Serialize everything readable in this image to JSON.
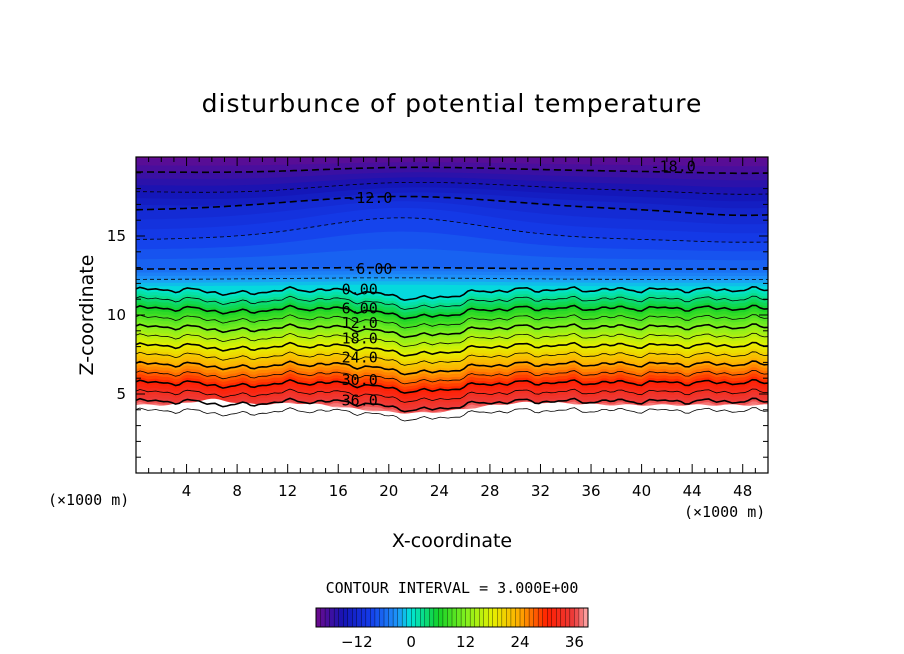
{
  "chart_data": {
    "type": "heatmap",
    "title": "disturbunce of potential temperature",
    "xlabel": "X-coordinate",
    "ylabel": "Z-coordinate",
    "x_unit": "(×1000 m)",
    "y_unit": "(×1000 m)",
    "xlim": [
      0,
      50
    ],
    "ylim": [
      0,
      20
    ],
    "x_ticks": [
      4,
      8,
      12,
      16,
      20,
      24,
      28,
      32,
      36,
      40,
      44,
      48
    ],
    "x_tick_labels": [
      "4",
      "8",
      "12",
      "16",
      "20",
      "24",
      "28",
      "32",
      "36",
      "40",
      "44",
      "48"
    ],
    "y_ticks": [
      5,
      10,
      15
    ],
    "y_tick_labels": [
      "5",
      "10",
      "15"
    ],
    "contour_interval_label": "CONTOUR INTERVAL = 3.000E+00",
    "contour_interval": 3.0,
    "value_range": [
      -21,
      39
    ],
    "colorbar": {
      "ticks": [
        -12,
        0,
        12,
        24,
        36
      ],
      "tick_labels": [
        "−12",
        "0",
        "12",
        "24",
        "36"
      ]
    },
    "contour_labels": [
      {
        "text": "-18.0",
        "value": -18,
        "x": 42.5,
        "z": 19.4
      },
      {
        "text": "-12.0",
        "value": -12,
        "x": 18.5,
        "z": 17.4
      },
      {
        "text": "-6.00",
        "value": -6,
        "x": 18.5,
        "z": 12.9
      },
      {
        "text": "0.00",
        "value": 0,
        "x": 17.7,
        "z": 11.6
      },
      {
        "text": "6.00",
        "value": 6,
        "x": 17.7,
        "z": 10.4
      },
      {
        "text": "12.0",
        "value": 12,
        "x": 17.7,
        "z": 9.5
      },
      {
        "text": "18.0",
        "value": 18,
        "x": 17.7,
        "z": 8.5
      },
      {
        "text": "24.0",
        "value": 24,
        "x": 17.7,
        "z": 7.3
      },
      {
        "text": "30.0",
        "value": 30,
        "x": 17.7,
        "z": 5.9
      },
      {
        "text": "36.0",
        "value": 36,
        "x": 17.7,
        "z": 4.6
      }
    ],
    "no_data_region": "below terrain (z < ~4.5)"
  }
}
